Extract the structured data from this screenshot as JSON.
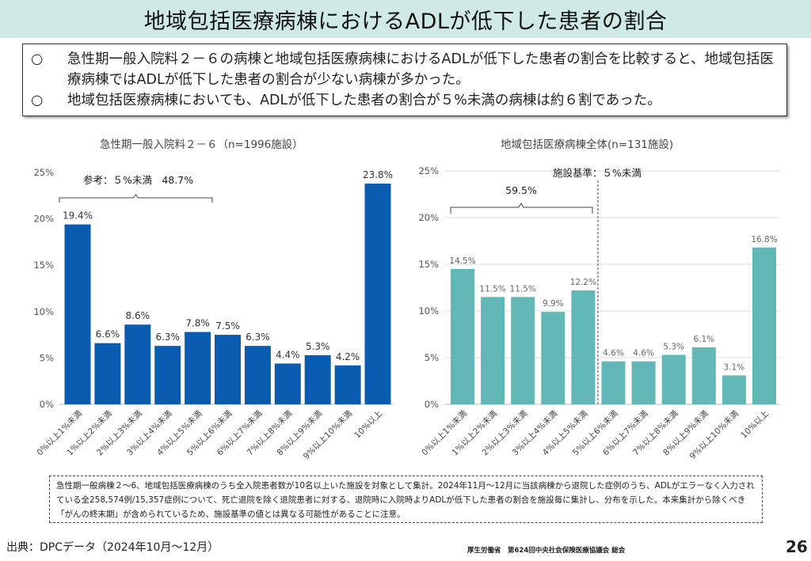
{
  "title": "地域包括医療病棟におけるADLが低下した患者の割合",
  "summary": {
    "bullet": "○",
    "points": [
      "急性期一般入院料２－６の病棟と地域包括医療病棟におけるADLが低下した患者の割合を比較すると、地域包括医療病棟ではADLが低下した患者の割合が少ない病棟が多かった。",
      "地域包括医療病棟においても、ADLが低下した患者の割合が５%未満の病棟は約６割であった。"
    ]
  },
  "chart_data": [
    {
      "type": "bar",
      "title": "急性期一般入院料２－６（n=1996施設）",
      "categories": [
        "0%以上1%未満",
        "1%以上2%未満",
        "2%以上3%未満",
        "3%以上4%未満",
        "4%以上5%未満",
        "5%以上6%未満",
        "6%以上7%未満",
        "7%以上8%未満",
        "8%以上9%未満",
        "9%以上10%未満",
        "10%以上"
      ],
      "values": [
        19.4,
        6.6,
        8.6,
        6.3,
        7.8,
        7.5,
        6.3,
        4.4,
        5.3,
        4.2,
        23.8
      ],
      "data_labels": [
        "19.4%",
        "6.6%",
        "8.6%",
        "6.3%",
        "7.8%",
        "7.5%",
        "6.3%",
        "4.4%",
        "5.3%",
        "4.2%",
        "23.8%"
      ],
      "ylim": [
        0,
        25
      ],
      "yticks": [
        "0%",
        "5%",
        "10%",
        "15%",
        "20%",
        "25%"
      ],
      "grid": false,
      "color": "#0a5cb0",
      "annotation": "参考：５%未満　48.7%"
    },
    {
      "type": "bar",
      "title": "地域包括医療病棟全体(n=131施設)",
      "categories": [
        "0%以上1%未満",
        "1%以上2%未満",
        "2%以上3%未満",
        "3%以上4%未満",
        "4%以上5%未満",
        "5%以上6%未満",
        "6%以上7%未満",
        "7%以上8%未満",
        "8%以上9%未満",
        "9%以上10%未満",
        "10%以上"
      ],
      "values": [
        14.5,
        11.5,
        11.5,
        9.9,
        12.2,
        4.6,
        4.6,
        5.3,
        6.1,
        3.1,
        16.8
      ],
      "data_labels": [
        "14.5%",
        "11.5%",
        "11.5%",
        "9.9%",
        "12.2%",
        "4.6%",
        "4.6%",
        "5.3%",
        "6.1%",
        "3.1%",
        "16.8%"
      ],
      "ylim": [
        0,
        25
      ],
      "yticks": [
        "0%",
        "5%",
        "10%",
        "15%",
        "20%",
        "25%"
      ],
      "grid": true,
      "color": "#62b8b6",
      "annotation": "59.5%",
      "threshold_label": "施設基準：５%未満"
    }
  ],
  "note": "急性期一般病棟２～6、地域包括医療病棟のうち全入院患者数が10名以上いた施設を対象として集計。2024年11月～12月に当該病棟から退院した症例のうち、ADLがエラーなく入力されている全258,574例/15,357症例について、死亡退院を除く退院患者に対する、退院時に入院時よりADLが低下した患者の割合を施設毎に集計し、分布を示した。本来集計から除くべき「がんの終末期」が含められているため、施設基準の値とは異なる可能性があることに注意。",
  "source": "出典：DPCデータ（2024年10月～12月）",
  "footer": "厚生労働省　第624回中央社会保険医療協議会 総会",
  "page_number": "26"
}
